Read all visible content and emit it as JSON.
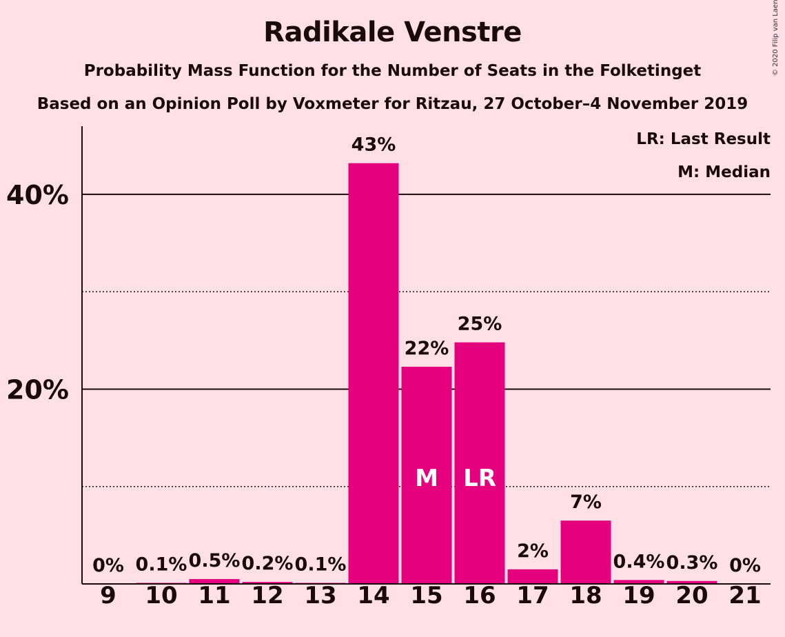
{
  "title": "Radikale Venstre",
  "subtitle": "Probability Mass Function for the Number of Seats in the Folketinget",
  "subtitle2": "Based on an Opinion Poll by Voxmeter for Ritzau, 27 October–4 November 2019",
  "copyright": "© 2020 Filip van Laenen",
  "legend": {
    "last_result": "LR: Last Result",
    "median": "M: Median"
  },
  "colors": {
    "background": "#FFE0E6",
    "bar": "#E5007D",
    "text": "#1a0a0a"
  },
  "chart_data": {
    "type": "bar",
    "categories": [
      "9",
      "10",
      "11",
      "12",
      "13",
      "14",
      "15",
      "16",
      "17",
      "18",
      "19",
      "20",
      "21"
    ],
    "values": [
      0,
      0.1,
      0.5,
      0.2,
      0.1,
      43.2,
      22.3,
      24.8,
      1.5,
      6.5,
      0.4,
      0.3,
      0
    ],
    "value_labels": [
      "0%",
      "0.1%",
      "0.5%",
      "0.2%",
      "0.1%",
      "43%",
      "22%",
      "25%",
      "2%",
      "7%",
      "0.4%",
      "0.3%",
      "0%"
    ],
    "ylim": [
      0,
      47
    ],
    "yticks": [
      20,
      40
    ],
    "ytick_labels": [
      "20%",
      "40%"
    ],
    "minor_gridlines": [
      10,
      30
    ],
    "median_category": "15",
    "median_marker": "M",
    "last_result_category": "16",
    "last_result_marker": "LR",
    "legend_position": "top-right"
  }
}
